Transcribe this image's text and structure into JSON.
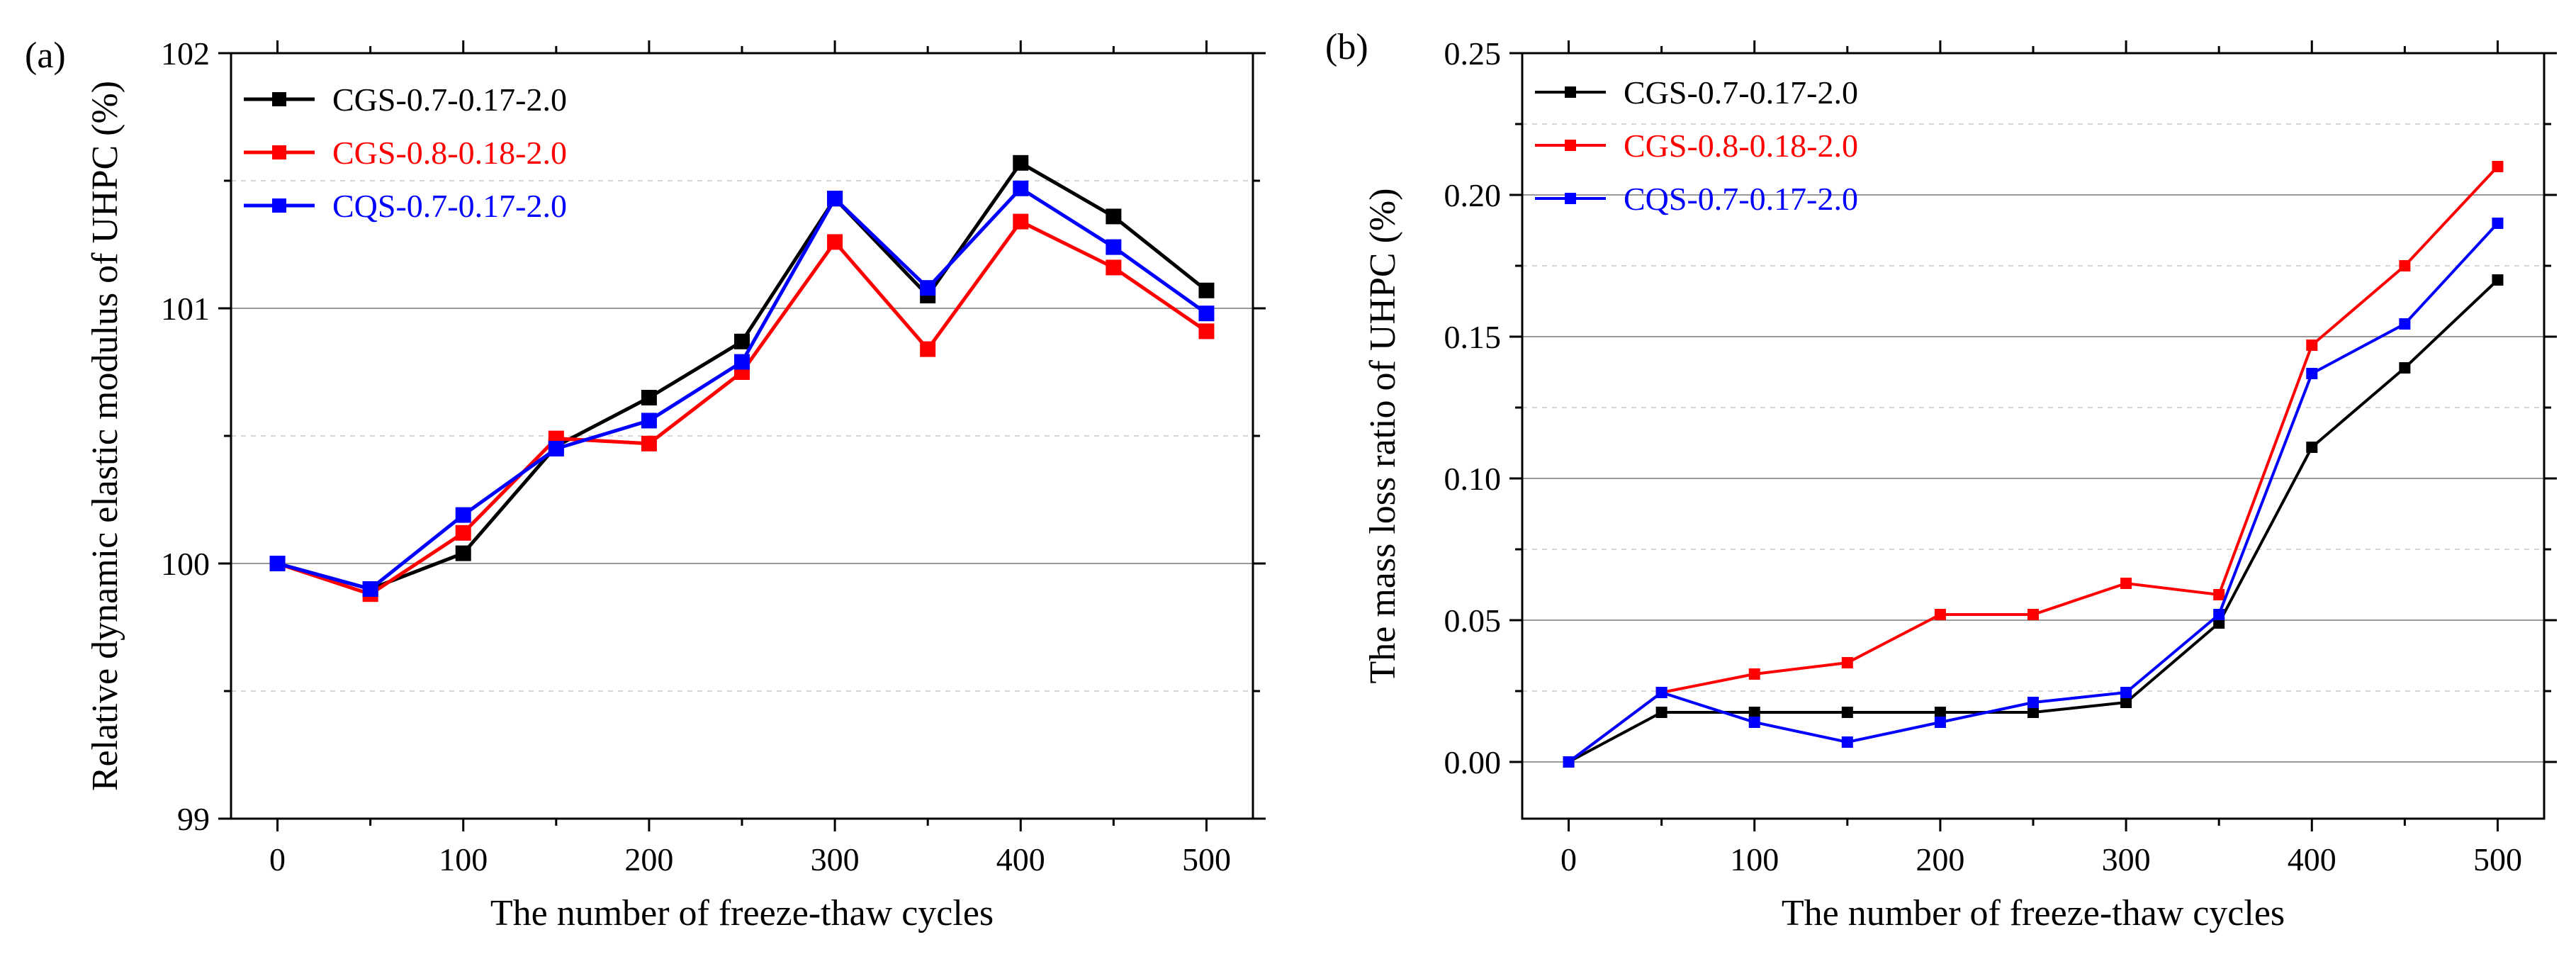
{
  "chart_data": [
    {
      "panel_label": "(a)",
      "type": "line",
      "xlabel": "The number of freeze-thaw cycles",
      "ylabel": "Relative dynamic elastic modulus of UHPC (%)",
      "xlim": [
        -25,
        525
      ],
      "ylim": [
        99,
        102
      ],
      "xticks": [
        "0",
        "100",
        "200",
        "300",
        "400",
        "500"
      ],
      "yticks": [
        "99",
        "100",
        "101",
        "102"
      ],
      "grid": "horizontal",
      "legend_position": "top-left",
      "x": [
        0,
        50,
        100,
        150,
        200,
        250,
        300,
        350,
        400,
        450,
        500
      ],
      "series": [
        {
          "name": "CGS-0.7-0.17-2.0",
          "color": "#000000",
          "values": [
            100.0,
            99.9,
            100.04,
            100.46,
            100.65,
            100.87,
            101.43,
            101.05,
            101.57,
            101.36,
            101.07
          ]
        },
        {
          "name": "CGS-0.8-0.18-2.0",
          "color": "#ff0000",
          "values": [
            100.0,
            99.88,
            100.12,
            100.49,
            100.47,
            100.75,
            101.26,
            100.84,
            101.34,
            101.16,
            100.91
          ]
        },
        {
          "name": "CQS-0.7-0.17-2.0",
          "color": "#0000ff",
          "values": [
            100.0,
            99.9,
            100.19,
            100.45,
            100.56,
            100.79,
            101.43,
            101.08,
            101.47,
            101.24,
            100.98
          ]
        }
      ]
    },
    {
      "panel_label": "(b)",
      "type": "line",
      "xlabel": "The number of freeze-thaw cycles",
      "ylabel": "The mass loss ratio of UHPC (%)",
      "xlim": [
        -25,
        525
      ],
      "ylim": [
        -0.02,
        0.25
      ],
      "xticks": [
        "0",
        "100",
        "200",
        "300",
        "400",
        "500"
      ],
      "yticks": [
        "0.00",
        "0.05",
        "0.10",
        "0.15",
        "0.20",
        "0.25"
      ],
      "grid": "horizontal",
      "legend_position": "top-left",
      "x": [
        0,
        50,
        100,
        150,
        200,
        250,
        300,
        350,
        400,
        450,
        500
      ],
      "series": [
        {
          "name": "CGS-0.7-0.17-2.0",
          "color": "#000000",
          "values": [
            0.0,
            0.0175,
            0.0175,
            0.0175,
            0.0175,
            0.0175,
            0.021,
            0.049,
            0.111,
            0.139,
            0.17
          ]
        },
        {
          "name": "CGS-0.8-0.18-2.0",
          "color": "#ff0000",
          "values": [
            0.0,
            0.0245,
            0.031,
            0.035,
            0.052,
            0.052,
            0.063,
            0.059,
            0.147,
            0.175,
            0.21
          ]
        },
        {
          "name": "CQS-0.7-0.17-2.0",
          "color": "#0000ff",
          "values": [
            0.0,
            0.0245,
            0.014,
            0.007,
            0.014,
            0.021,
            0.0245,
            0.052,
            0.137,
            0.1545,
            0.19
          ]
        }
      ]
    }
  ]
}
